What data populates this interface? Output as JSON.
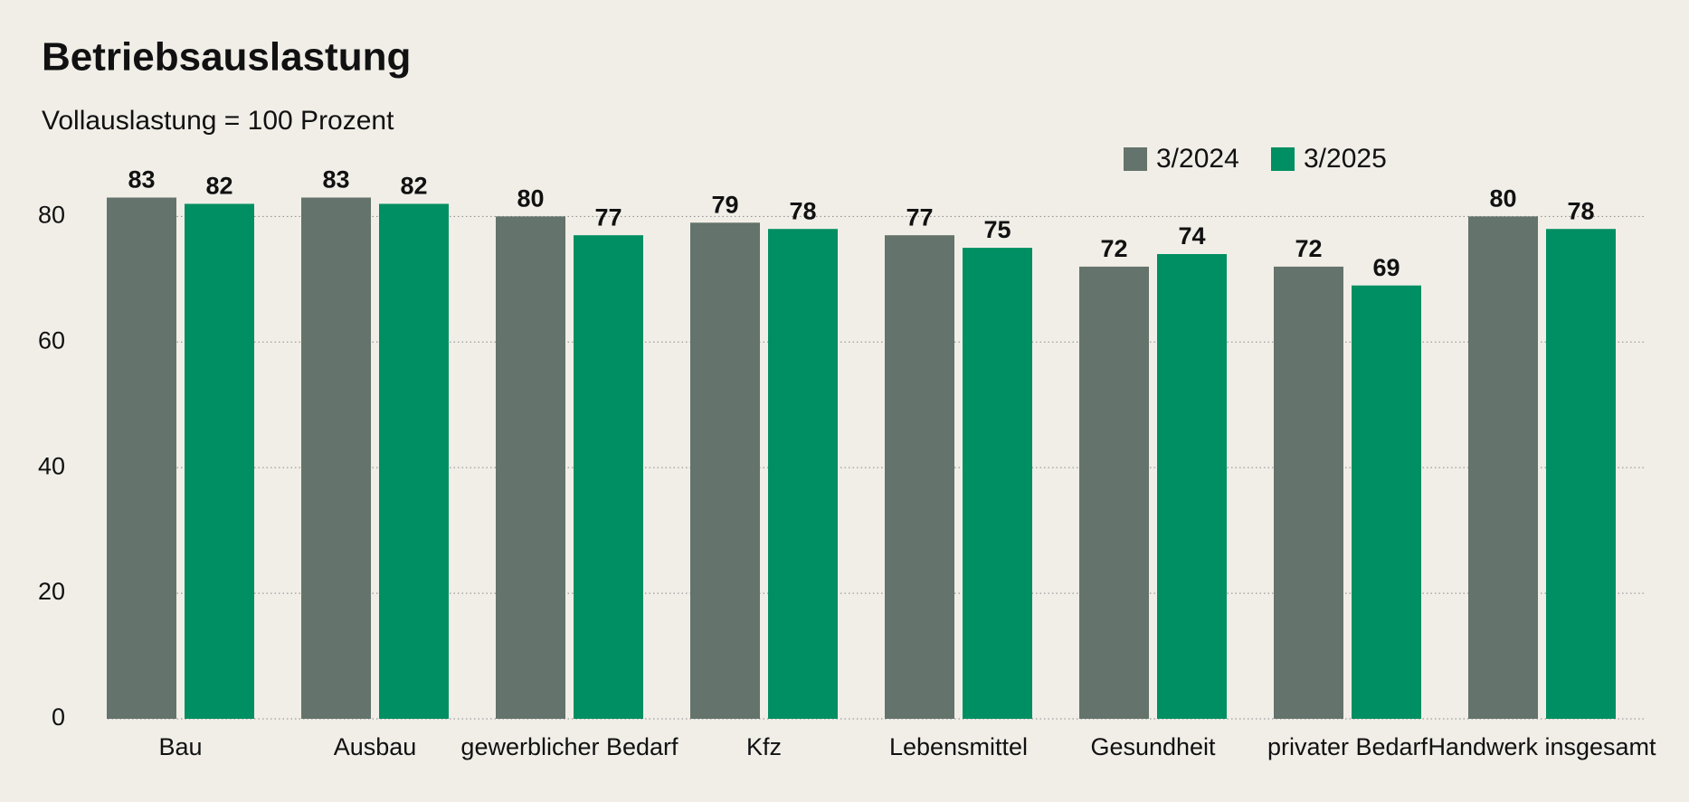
{
  "chart_data": {
    "type": "bar",
    "title": "Betriebsauslastung",
    "subtitle": "Vollauslastung = 100 Prozent",
    "categories": [
      "Bau",
      "Ausbau",
      "gewerblicher Bedarf",
      "Kfz",
      "Lebensmittel",
      "Gesundheit",
      "privater Bedarf",
      "Handwerk insgesamt"
    ],
    "series": [
      {
        "name": "3/2024",
        "color": "#64736b",
        "values": [
          83,
          83,
          80,
          79,
          77,
          72,
          72,
          80
        ]
      },
      {
        "name": "3/2025",
        "color": "#008f62",
        "values": [
          82,
          82,
          77,
          78,
          75,
          74,
          69,
          78
        ]
      }
    ],
    "ylim": [
      0,
      85
    ],
    "yticks": [
      0,
      20,
      40,
      60,
      80
    ],
    "grid": true,
    "legend": "top-right"
  }
}
